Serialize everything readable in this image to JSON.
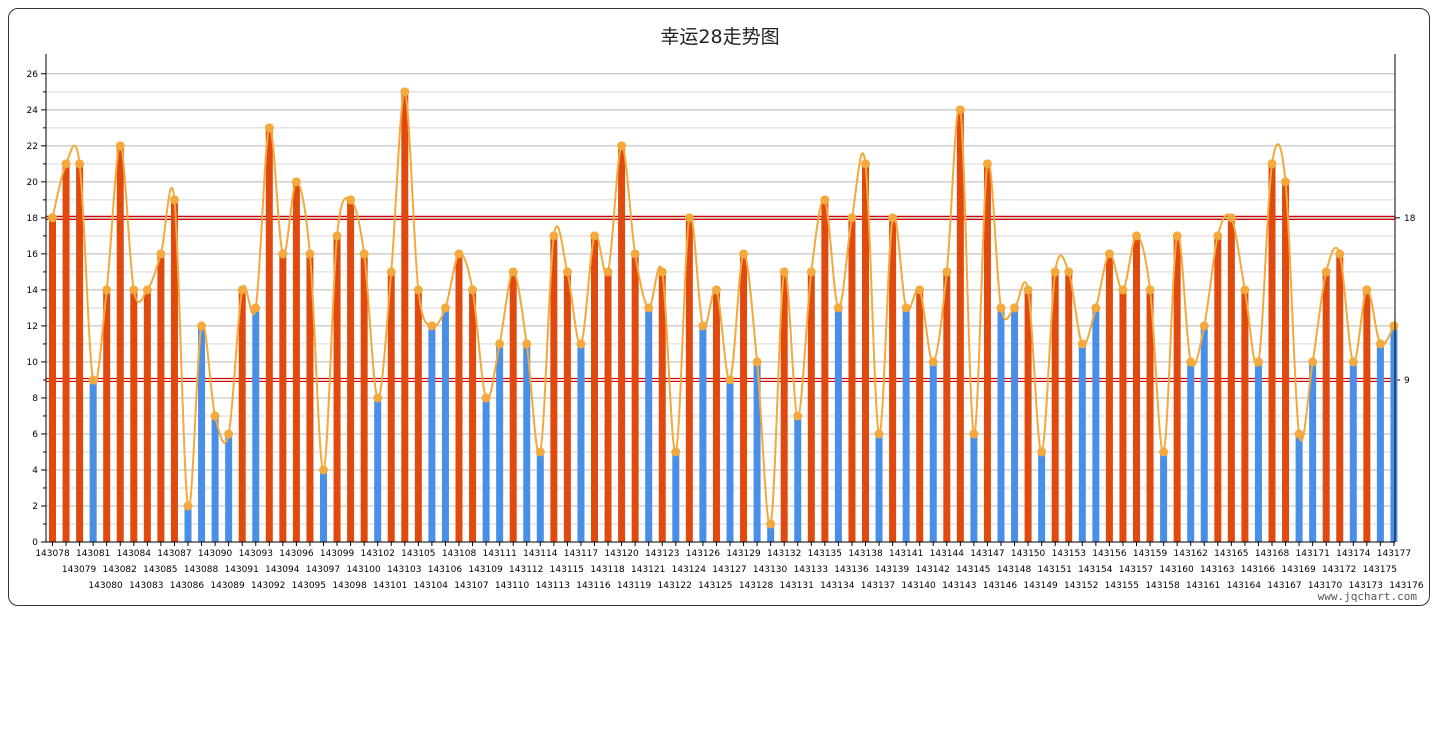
{
  "chart_data": {
    "type": "bar",
    "title": "幸运28走势图",
    "watermark": "www.jqchart.com",
    "categories": [
      "143078",
      "143079",
      "143080",
      "143081",
      "143082",
      "143083",
      "143084",
      "143085",
      "143086",
      "143087",
      "143088",
      "143089",
      "143090",
      "143091",
      "143092",
      "143093",
      "143094",
      "143095",
      "143096",
      "143097",
      "143098",
      "143099",
      "143100",
      "143101",
      "143102",
      "143103",
      "143104",
      "143105",
      "143106",
      "143107",
      "143108",
      "143109",
      "143110",
      "143111",
      "143112",
      "143113",
      "143114",
      "143115",
      "143116",
      "143117",
      "143118",
      "143119",
      "143120",
      "143121",
      "143122",
      "143123",
      "143124",
      "143125",
      "143126",
      "143127",
      "143128",
      "143129",
      "143130",
      "143131",
      "143132",
      "143133",
      "143134",
      "143135",
      "143136",
      "143137",
      "143138",
      "143139",
      "143140",
      "143141",
      "143142",
      "143143",
      "143144",
      "143145",
      "143146",
      "143147",
      "143148",
      "143149",
      "143150",
      "143151",
      "143152",
      "143153",
      "143154",
      "143155",
      "143156",
      "143157",
      "143158",
      "143159",
      "143160",
      "143161",
      "143162",
      "143163",
      "143164",
      "143165",
      "143166",
      "143167",
      "143168",
      "143169",
      "143170",
      "143171",
      "143172",
      "143173",
      "143174",
      "143175",
      "143176",
      "143177"
    ],
    "values": [
      18,
      21,
      21,
      9,
      14,
      22,
      14,
      14,
      16,
      19,
      2,
      12,
      7,
      6,
      14,
      13,
      23,
      16,
      20,
      16,
      4,
      17,
      19,
      16,
      8,
      15,
      25,
      14,
      12,
      13,
      16,
      14,
      8,
      11,
      15,
      11,
      5,
      17,
      15,
      11,
      17,
      15,
      22,
      16,
      13,
      15,
      5,
      18,
      12,
      14,
      9,
      16,
      10,
      1,
      15,
      7,
      15,
      19,
      13,
      18,
      21,
      6,
      18,
      13,
      14,
      10,
      15,
      24,
      6,
      21,
      13,
      13,
      14,
      5,
      15,
      15,
      11,
      13,
      16,
      14,
      17,
      14,
      5,
      17,
      10,
      12,
      17,
      18,
      14,
      10,
      21,
      20,
      6,
      10,
      15,
      16,
      10,
      14,
      11,
      12
    ],
    "bar_colors": {
      "low": "#4a8fe7",
      "high": "#e04a0e"
    },
    "line_color": "#f3a93b",
    "ref_line_color": "#d40000",
    "ref_lines": [
      18,
      9
    ],
    "y_axis": {
      "min": 0,
      "max": 26,
      "step": 2,
      "label_max": 26
    },
    "grid": true
  }
}
